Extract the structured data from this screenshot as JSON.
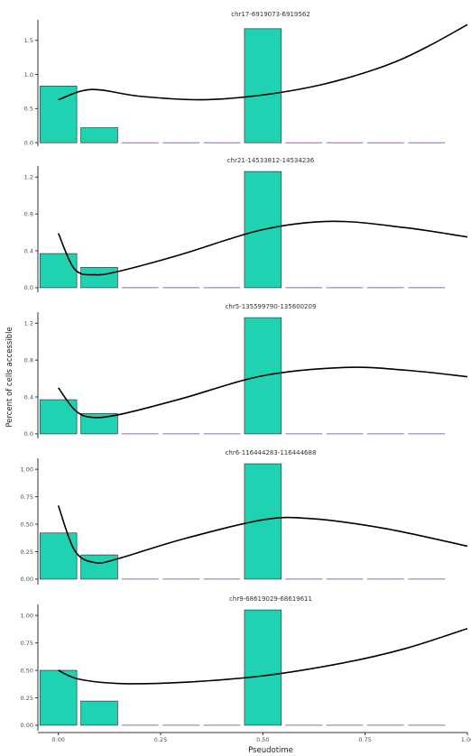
{
  "chart_data": {
    "type": "bar",
    "xlabel": "Pseudotime",
    "ylabel": "Percent of cells accessible",
    "x_ticks": [
      0.0,
      0.25,
      0.5,
      0.75,
      1.0
    ],
    "x_tick_labels": [
      "0.00",
      "0.25",
      "0.50",
      "0.75",
      "1.00"
    ],
    "xlim": [
      -0.05,
      1.0
    ],
    "bin_centers": [
      0.0,
      0.1,
      0.2,
      0.3,
      0.4,
      0.5,
      0.6,
      0.7,
      0.8,
      0.9
    ],
    "bin_width": 0.09,
    "grid": false,
    "panels": [
      {
        "title": "chr17-6919073-6919562",
        "ylim": [
          -0.05,
          1.8
        ],
        "y_ticks": [
          0.0,
          0.5,
          1.0,
          1.5
        ],
        "y_tick_labels": [
          "0.0",
          "0.5",
          "1.0",
          "1.5"
        ],
        "values": [
          0.83,
          0.22,
          0,
          0,
          0,
          1.67,
          0,
          0,
          0,
          0
        ],
        "trend": {
          "x": [
            0.0,
            0.08,
            0.2,
            0.35,
            0.5,
            0.65,
            0.8,
            0.9,
            1.0
          ],
          "y": [
            0.63,
            0.78,
            0.68,
            0.63,
            0.7,
            0.86,
            1.13,
            1.4,
            1.73
          ]
        }
      },
      {
        "title": "chr21-14533812-14534236",
        "ylim": [
          -0.05,
          1.32
        ],
        "y_ticks": [
          0.0,
          0.4,
          0.8,
          1.2
        ],
        "y_tick_labels": [
          "0.0",
          "0.4",
          "0.8",
          "1.2"
        ],
        "values": [
          0.37,
          0.22,
          0,
          0,
          0,
          1.26,
          0,
          0,
          0,
          0
        ],
        "trend": {
          "x": [
            0.0,
            0.04,
            0.09,
            0.15,
            0.3,
            0.5,
            0.67,
            0.85,
            1.0
          ],
          "y": [
            0.59,
            0.2,
            0.14,
            0.18,
            0.36,
            0.63,
            0.72,
            0.65,
            0.55
          ]
        }
      },
      {
        "title": "chr5-135599790-135600209",
        "ylim": [
          -0.05,
          1.32
        ],
        "y_ticks": [
          0.0,
          0.4,
          0.8,
          1.2
        ],
        "y_tick_labels": [
          "0.0",
          "0.4",
          "0.8",
          "1.2"
        ],
        "values": [
          0.37,
          0.22,
          0,
          0,
          0,
          1.26,
          0,
          0,
          0,
          0
        ],
        "trend": {
          "x": [
            0.0,
            0.04,
            0.08,
            0.15,
            0.3,
            0.5,
            0.7,
            0.85,
            1.0
          ],
          "y": [
            0.5,
            0.26,
            0.18,
            0.21,
            0.38,
            0.63,
            0.72,
            0.69,
            0.62
          ]
        }
      },
      {
        "title": "chr6-116444283-116444688",
        "ylim": [
          -0.05,
          1.1
        ],
        "y_ticks": [
          0.0,
          0.25,
          0.5,
          0.75,
          1.0
        ],
        "y_tick_labels": [
          "0.00",
          "0.25",
          "0.50",
          "0.75",
          "1.00"
        ],
        "values": [
          0.42,
          0.22,
          0,
          0,
          0,
          1.05,
          0,
          0,
          0,
          0
        ],
        "trend": {
          "x": [
            0.0,
            0.04,
            0.09,
            0.15,
            0.3,
            0.5,
            0.62,
            0.8,
            1.0
          ],
          "y": [
            0.67,
            0.26,
            0.15,
            0.19,
            0.36,
            0.54,
            0.55,
            0.46,
            0.3
          ]
        }
      },
      {
        "title": "chr9-68619029-68619611",
        "ylim": [
          -0.05,
          1.1
        ],
        "y_ticks": [
          0.0,
          0.25,
          0.5,
          0.75,
          1.0
        ],
        "y_tick_labels": [
          "0.00",
          "0.25",
          "0.50",
          "0.75",
          "1.00"
        ],
        "values": [
          0.5,
          0.22,
          0,
          0,
          0,
          1.05,
          0,
          0,
          0,
          0
        ],
        "trend": {
          "x": [
            0.0,
            0.05,
            0.15,
            0.3,
            0.5,
            0.7,
            0.85,
            1.0
          ],
          "y": [
            0.5,
            0.42,
            0.38,
            0.39,
            0.45,
            0.57,
            0.7,
            0.88
          ]
        }
      }
    ]
  }
}
